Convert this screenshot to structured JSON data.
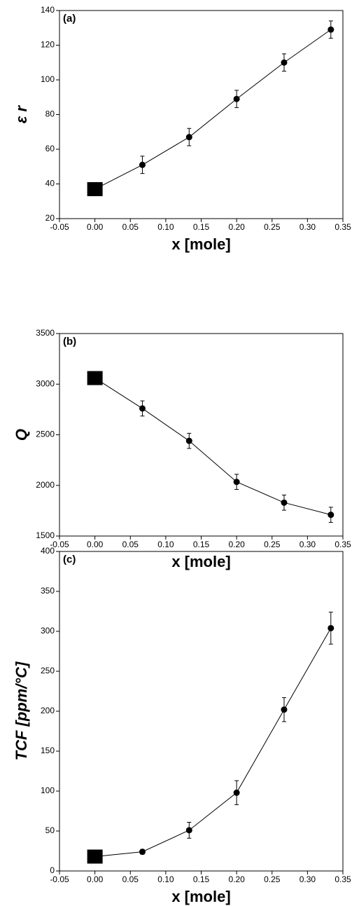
{
  "chart_data": [
    {
      "type": "line",
      "annotation": "(a)",
      "xlabel": "x [mole]",
      "ylabel": "ε r",
      "x": [
        0,
        0.067,
        0.133,
        0.2,
        0.267,
        0.333
      ],
      "values": [
        37,
        51,
        67,
        89,
        110,
        129
      ],
      "errors": [
        0,
        5,
        5,
        5,
        5,
        5
      ],
      "markers": [
        "square",
        "circle",
        "circle",
        "circle",
        "circle",
        "circle"
      ],
      "color": "#000000",
      "xlim": [
        -0.05,
        0.35
      ],
      "xticks": [
        -0.05,
        {
          "value": 0,
          "label": "0.00"
        },
        0.05,
        {
          "value": 0.1,
          "label": "0.10"
        },
        0.15,
        {
          "value": 0.2,
          "label": "0.20"
        },
        0.25,
        {
          "value": 0.3,
          "label": "0.30"
        },
        0.35
      ],
      "ylim": [
        20,
        140
      ],
      "yticks": [
        20,
        40,
        60,
        80,
        100,
        120,
        140
      ]
    },
    {
      "type": "line",
      "annotation": "(b)",
      "xlabel": "x [mole]",
      "ylabel": "Q",
      "x": [
        0,
        0.067,
        0.133,
        0.2,
        0.267,
        0.333
      ],
      "values": [
        3060,
        2760,
        2440,
        2035,
        1830,
        1710
      ],
      "errors": [
        0,
        75,
        75,
        75,
        75,
        75
      ],
      "markers": [
        "square",
        "circle",
        "circle",
        "circle",
        "circle",
        "circle"
      ],
      "color": "#000000",
      "xlim": [
        -0.05,
        0.35
      ],
      "xticks": [
        -0.05,
        {
          "value": 0,
          "label": "0.00"
        },
        0.05,
        {
          "value": 0.1,
          "label": "0.10"
        },
        0.15,
        {
          "value": 0.2,
          "label": "0.20"
        },
        0.25,
        {
          "value": 0.3,
          "label": "0.30"
        },
        0.35
      ],
      "ylim": [
        1500,
        3500
      ],
      "yticks": [
        1500,
        2000,
        2500,
        3000,
        3500
      ]
    },
    {
      "type": "line",
      "annotation": "(c)",
      "xlabel": "x [mole]",
      "ylabel": "TCF [ppm/°C]",
      "x": [
        0,
        0.067,
        0.133,
        0.2,
        0.267,
        0.333
      ],
      "values": [
        18,
        24,
        51,
        98,
        202,
        304
      ],
      "errors": [
        0,
        3,
        10,
        15,
        15,
        20
      ],
      "markers": [
        "square",
        "circle",
        "circle",
        "circle",
        "circle",
        "circle"
      ],
      "color": "#000000",
      "xlim": [
        -0.05,
        0.35
      ],
      "xticks": [
        -0.05,
        {
          "value": 0,
          "label": "0.00"
        },
        0.05,
        {
          "value": 0.1,
          "label": "0.10"
        },
        0.15,
        {
          "value": 0.2,
          "label": "0.20"
        },
        0.25,
        {
          "value": 0.3,
          "label": "0.30"
        },
        0.35
      ],
      "ylim": [
        0,
        400
      ],
      "yticks": [
        0,
        50,
        100,
        150,
        200,
        250,
        300,
        350,
        400
      ]
    }
  ]
}
